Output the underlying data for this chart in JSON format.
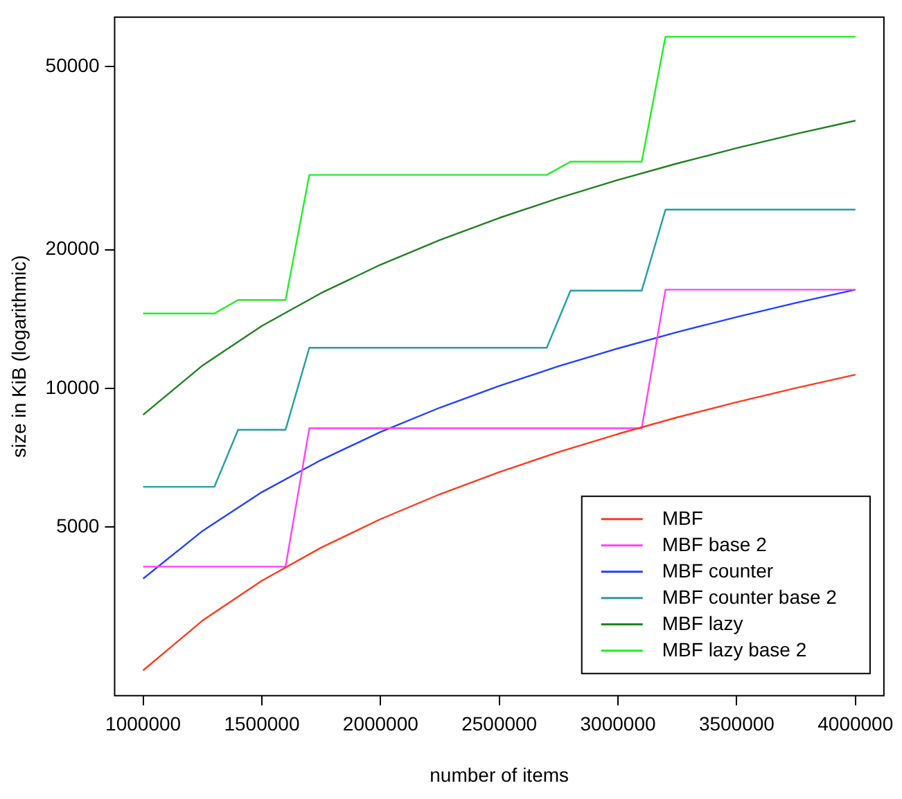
{
  "chart_data": {
    "type": "line",
    "xlabel": "number of items",
    "ylabel": "size in KiB (logarithmic)",
    "log": "y",
    "marker": "none",
    "legend": "bottom right",
    "xlim": [
      880000,
      4120000
    ],
    "xticks": [
      1000000,
      1500000,
      2000000,
      2500000,
      3000000,
      3500000,
      4000000
    ],
    "ylim": [
      2150,
      64000
    ],
    "yticks": [
      5000,
      10000,
      20000,
      50000
    ],
    "series": [
      {
        "name": "MBF",
        "color": "#ff3a1a",
        "x": [
          1000000,
          1250000,
          1500000,
          1750000,
          2000000,
          2250000,
          2500000,
          2750000,
          3000000,
          3250000,
          3500000,
          3750000,
          4000000
        ],
        "values": [
          2440,
          3130,
          3820,
          4510,
          5200,
          5890,
          6580,
          7270,
          7960,
          8650,
          9330,
          10020,
          10710
        ]
      },
      {
        "name": "MBF base 2",
        "color": "#ff40ff",
        "x": [
          1000000,
          1600000,
          1700000,
          3100000,
          3200000,
          4000000
        ],
        "values": [
          4100,
          4100,
          8190,
          8190,
          16380,
          16380
        ]
      },
      {
        "name": "MBF counter",
        "color": "#2040ff",
        "x": [
          1000000,
          1250000,
          1500000,
          1750000,
          2000000,
          2250000,
          2500000,
          2750000,
          3000000,
          3250000,
          3500000,
          3750000,
          4000000
        ],
        "values": [
          3860,
          4900,
          5950,
          6990,
          8040,
          9080,
          10120,
          11170,
          12210,
          13250,
          14290,
          15340,
          16380
        ]
      },
      {
        "name": "MBF counter base 2",
        "color": "#20a0a0",
        "x": [
          1000000,
          1300000,
          1400000,
          1600000,
          1700000,
          2700000,
          2800000,
          3100000,
          3200000,
          4000000
        ],
        "values": [
          6110,
          6110,
          8130,
          8130,
          12250,
          12250,
          16300,
          16300,
          24440,
          24440
        ]
      },
      {
        "name": "MBF lazy",
        "color": "#208020",
        "x": [
          1000000,
          1250000,
          1500000,
          1750000,
          2000000,
          2250000,
          2500000,
          2750000,
          3000000,
          3250000,
          3500000,
          3750000,
          4000000
        ],
        "values": [
          8760,
          11210,
          13660,
          16110,
          18560,
          21000,
          23450,
          25900,
          28350,
          30800,
          33250,
          35700,
          38150
        ]
      },
      {
        "name": "MBF lazy base 2",
        "color": "#20f020",
        "x": [
          1000000,
          1300000,
          1400000,
          1600000,
          1700000,
          2700000,
          2800000,
          3100000,
          3200000,
          4000000
        ],
        "values": [
          14540,
          14540,
          15560,
          15560,
          29080,
          29080,
          31070,
          31070,
          58030,
          58030
        ]
      }
    ]
  }
}
